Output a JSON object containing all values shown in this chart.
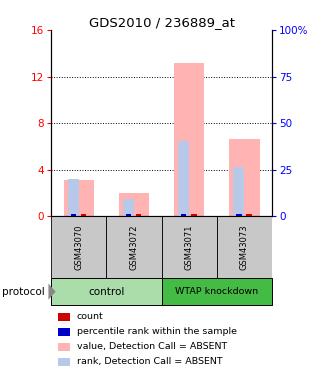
{
  "title": "GDS2010 / 236889_at",
  "samples": [
    "GSM43070",
    "GSM43072",
    "GSM43071",
    "GSM43073"
  ],
  "pink_bar_values": [
    3.1,
    2.0,
    13.2,
    6.6
  ],
  "blue_bar_values": [
    3.2,
    1.5,
    6.5,
    4.2
  ],
  "ylim": [
    0,
    16
  ],
  "yticks_left": [
    0,
    4,
    8,
    12,
    16
  ],
  "yticks_right_vals": [
    0,
    25,
    50,
    75,
    100
  ],
  "yticks_right_labels": [
    "0",
    "25",
    "50",
    "75",
    "100%"
  ],
  "pink_color": "#FFB3B3",
  "light_blue_color": "#B8C8E8",
  "red_color": "#CC0000",
  "blue_color": "#0000CC",
  "group_colors": [
    "#AADDAA",
    "#44BB44"
  ],
  "legend_items": [
    {
      "color": "#CC0000",
      "label": "count"
    },
    {
      "color": "#0000CC",
      "label": "percentile rank within the sample"
    },
    {
      "color": "#FFB3B3",
      "label": "value, Detection Call = ABSENT"
    },
    {
      "color": "#B8C8E8",
      "label": "rank, Detection Call = ABSENT"
    }
  ]
}
